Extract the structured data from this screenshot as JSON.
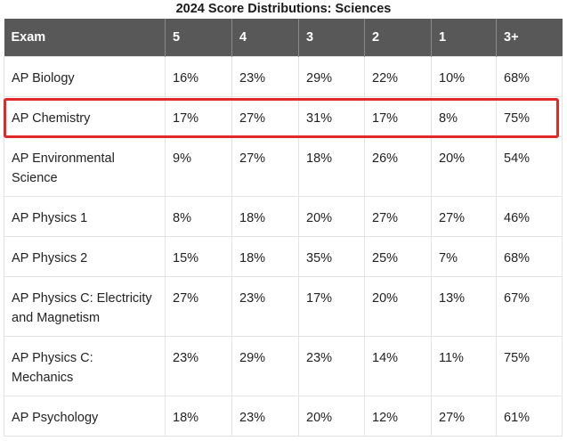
{
  "title": "2024 Score Distributions: Sciences",
  "table": {
    "headers": [
      "Exam",
      "5",
      "4",
      "3",
      "2",
      "1",
      "3+"
    ],
    "rows": [
      {
        "exam": "AP Biology",
        "cells": [
          "16%",
          "23%",
          "29%",
          "22%",
          "10%",
          "68%"
        ]
      },
      {
        "exam": "AP Chemistry",
        "cells": [
          "17%",
          "27%",
          "31%",
          "17%",
          "8%",
          "75%"
        ],
        "highlighted": true
      },
      {
        "exam": "AP Environmental Science",
        "cells": [
          "9%",
          "27%",
          "18%",
          "26%",
          "20%",
          "54%"
        ]
      },
      {
        "exam": "AP Physics 1",
        "cells": [
          "8%",
          "18%",
          "20%",
          "27%",
          "27%",
          "46%"
        ]
      },
      {
        "exam": "AP Physics 2",
        "cells": [
          "15%",
          "18%",
          "35%",
          "25%",
          "7%",
          "68%"
        ]
      },
      {
        "exam": "AP Physics C: Electricity and Magnetism",
        "cells": [
          "27%",
          "23%",
          "17%",
          "20%",
          "13%",
          "67%"
        ]
      },
      {
        "exam": "AP Physics C: Mechanics",
        "cells": [
          "23%",
          "29%",
          "23%",
          "14%",
          "11%",
          "75%"
        ]
      },
      {
        "exam": "AP Psychology",
        "cells": [
          "18%",
          "23%",
          "20%",
          "12%",
          "27%",
          "61%"
        ]
      }
    ]
  },
  "colors": {
    "header_bg": "#585858",
    "header_text": "#ffffff",
    "highlight_border": "#e02a2a",
    "grid_line": "#e3e3e3"
  }
}
